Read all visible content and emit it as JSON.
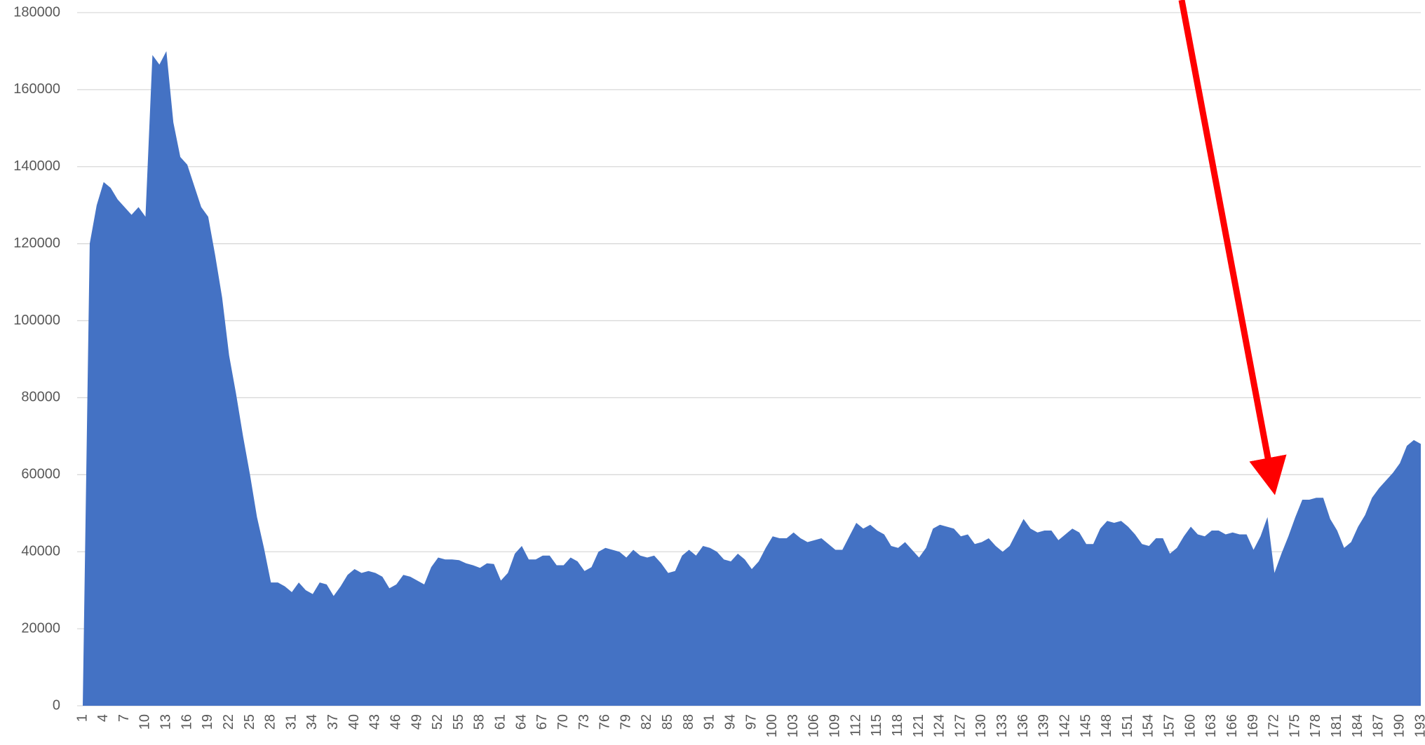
{
  "chart_data": {
    "type": "area",
    "color": "#4472c4",
    "grid": true,
    "categories": [
      1,
      null,
      null,
      4,
      null,
      null,
      7,
      null,
      null,
      10,
      null,
      null,
      13,
      null,
      null,
      16,
      null,
      null,
      19,
      null,
      null,
      22,
      null,
      null,
      25,
      null,
      null,
      28,
      null,
      null,
      31,
      null,
      null,
      34,
      null,
      null,
      37,
      null,
      null,
      40,
      null,
      null,
      43,
      null,
      null,
      46,
      null,
      null,
      49,
      null,
      null,
      52,
      null,
      null,
      55,
      null,
      null,
      58,
      null,
      null,
      61,
      null,
      null,
      64,
      null,
      null,
      67,
      null,
      null,
      70,
      null,
      null,
      73,
      null,
      null,
      76,
      null,
      null,
      79,
      null,
      null,
      82,
      null,
      null,
      85,
      null,
      null,
      88,
      null,
      null,
      91,
      null,
      null,
      94,
      null,
      null,
      97,
      null,
      null,
      100,
      null,
      null,
      103,
      null,
      null,
      106,
      null,
      null,
      109,
      null,
      null,
      112,
      null,
      null,
      115,
      null,
      null,
      118,
      null,
      null,
      121,
      null,
      null,
      124,
      null,
      null,
      127,
      null,
      null,
      130,
      null,
      null,
      133,
      null,
      null,
      136,
      null,
      null,
      139,
      null,
      null,
      142,
      null,
      null,
      145,
      null,
      null,
      148,
      null,
      null,
      151,
      null,
      null,
      154,
      null,
      null,
      157,
      null,
      null,
      160,
      null,
      null,
      163,
      null,
      null,
      166,
      null,
      null,
      169,
      null,
      null,
      172,
      null,
      null,
      175,
      null,
      null,
      178,
      null,
      null,
      181,
      null,
      null,
      184,
      null,
      null,
      187,
      null,
      null,
      190,
      null,
      null,
      193
    ],
    "values": [
      0,
      120000,
      130000,
      136000,
      134500,
      131500,
      129500,
      127500,
      129500,
      127000,
      169000,
      166500,
      170000,
      151500,
      142500,
      140500,
      135000,
      129500,
      127000,
      117000,
      106000,
      91000,
      81000,
      70000,
      60000,
      49000,
      41000,
      32000,
      32000,
      31000,
      29500,
      32000,
      30000,
      29000,
      32000,
      31500,
      28500,
      31000,
      34000,
      35500,
      34500,
      35000,
      34500,
      33500,
      30500,
      31500,
      34000,
      33500,
      32500,
      31500,
      36000,
      38500,
      38000,
      38000,
      37800,
      37000,
      36500,
      35800,
      37000,
      36800,
      32500,
      34500,
      39500,
      41500,
      38000,
      38000,
      39000,
      39000,
      36500,
      36500,
      38500,
      37500,
      35000,
      36000,
      40000,
      41000,
      40500,
      40000,
      38500,
      40500,
      39000,
      38500,
      39000,
      37000,
      34500,
      35000,
      39000,
      40500,
      39000,
      41500,
      41000,
      40000,
      38000,
      37500,
      39500,
      38000,
      35500,
      37500,
      41000,
      44000,
      43500,
      43500,
      45000,
      43500,
      42500,
      43000,
      43500,
      42000,
      40500,
      40500,
      44000,
      47500,
      46000,
      47000,
      45500,
      44500,
      41500,
      41000,
      42500,
      40500,
      38500,
      41000,
      46000,
      47000,
      46500,
      46000,
      44000,
      44500,
      42000,
      42500,
      43500,
      41500,
      40000,
      41500,
      45000,
      48500,
      46000,
      45000,
      45500,
      45500,
      43000,
      44500,
      46000,
      45000,
      42000,
      42000,
      46000,
      48000,
      47500,
      48000,
      46500,
      44500,
      42000,
      41500,
      43500,
      43500,
      39500,
      41000,
      44000,
      46500,
      44500,
      44000,
      45500,
      45500,
      44500,
      45000,
      44500,
      44500,
      40500,
      44000,
      49000,
      34500,
      39500,
      44000,
      49000,
      53500,
      53500,
      54000,
      54000,
      48500,
      45500,
      41000,
      42500,
      46500,
      49500,
      54000,
      56500,
      58500,
      60500,
      63000,
      67500,
      69000,
      68000
    ],
    "ylim": [
      0,
      180000
    ],
    "yticks": [
      0,
      20000,
      40000,
      60000,
      80000,
      100000,
      120000,
      140000,
      160000,
      180000
    ]
  }
}
